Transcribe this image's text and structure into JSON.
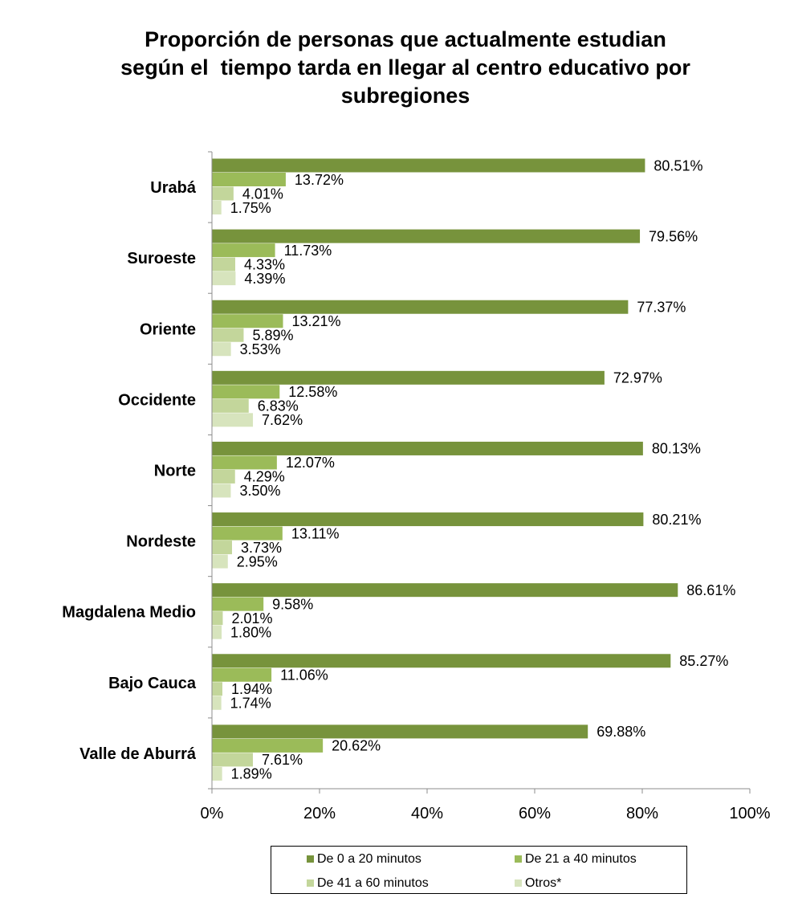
{
  "title_lines": [
    "Proporción de personas que actualmente estudian",
    "según el  tiempo tarda en llegar al centro educativo por",
    "subregiones"
  ],
  "colors": [
    "#77933c",
    "#9bbb59",
    "#c3d69b",
    "#d7e4bd"
  ],
  "chart_data": {
    "type": "bar",
    "orientation": "horizontal",
    "title": "Proporción de personas que actualmente estudian según el  tiempo tarda en llegar al centro educativo por subregiones",
    "categories": [
      "Urabá",
      "Suroeste",
      "Oriente",
      "Occidente",
      "Norte",
      "Nordeste",
      "Magdalena Medio",
      "Bajo Cauca",
      "Valle de Aburrá"
    ],
    "series": [
      {
        "name": "De 0 a 20 minutos",
        "values": [
          80.51,
          79.56,
          77.37,
          72.97,
          80.13,
          80.21,
          86.61,
          85.27,
          69.88
        ]
      },
      {
        "name": "De 21 a 40 minutos",
        "values": [
          13.72,
          11.73,
          13.21,
          12.58,
          12.07,
          13.11,
          9.58,
          11.06,
          20.62
        ]
      },
      {
        "name": "De 41 a 60 minutos",
        "values": [
          4.01,
          4.33,
          5.89,
          6.83,
          4.29,
          3.73,
          2.01,
          1.94,
          7.61
        ]
      },
      {
        "name": "Otros*",
        "values": [
          1.75,
          4.39,
          3.53,
          7.62,
          3.5,
          2.95,
          1.8,
          1.74,
          1.89
        ]
      }
    ],
    "data_labels": [
      [
        "80.51%",
        "13.72%",
        "4.01%",
        "1.75%"
      ],
      [
        "79.56%",
        "11.73%",
        "4.33%",
        "4.39%"
      ],
      [
        "77.37%",
        "13.21%",
        "5.89%",
        "3.53%"
      ],
      [
        "72.97%",
        "12.58%",
        "6.83%",
        "7.62%"
      ],
      [
        "80.13%",
        "12.07%",
        "4.29%",
        "3.50%"
      ],
      [
        "80.21%",
        "13.11%",
        "3.73%",
        "2.95%"
      ],
      [
        "86.61%",
        "9.58%",
        "2.01%",
        "1.80%"
      ],
      [
        "85.27%",
        "11.06%",
        "1.94%",
        "1.74%"
      ],
      [
        "69.88%",
        "20.62%",
        "7.61%",
        "1.89%"
      ]
    ],
    "xlim": [
      0,
      100
    ],
    "x_ticks": [
      0,
      20,
      40,
      60,
      80,
      100
    ],
    "x_tick_labels": [
      "0%",
      "20%",
      "40%",
      "60%",
      "80%",
      "100%"
    ],
    "grid": false,
    "legend_position": "bottom"
  },
  "legend": {
    "items": [
      "De 0 a 20 minutos",
      "De 21 a 40 minutos",
      "De 41 a 60 minutos",
      "Otros*"
    ]
  }
}
